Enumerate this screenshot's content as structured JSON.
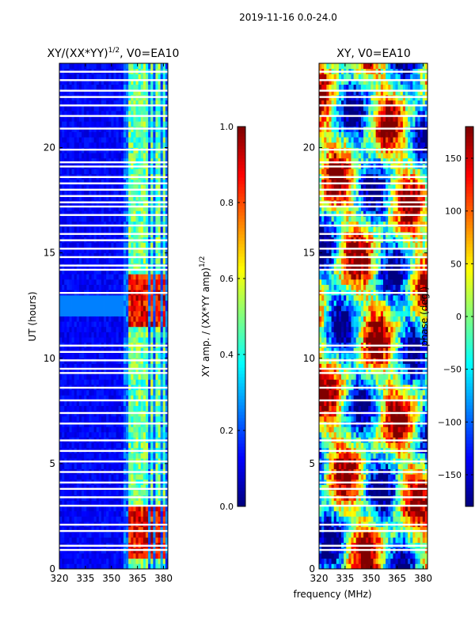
{
  "suptitle": "2019-11-16 0.0-24.0",
  "xlabel_shared": "frequency (MHz)",
  "chart_data": [
    {
      "type": "heatmap",
      "id": "amp",
      "title": "XY/(XX*YY)",
      "title_exp": "1/2",
      "title_tail": ", V0=EA10",
      "ylabel": "UT (hours)",
      "xlim": [
        320,
        382.5
      ],
      "ylim": [
        0,
        24
      ],
      "xticks": [
        320,
        335,
        350,
        365,
        380
      ],
      "yticks": [
        0,
        5,
        10,
        15,
        20
      ],
      "colorbar": {
        "label_main": "XY amp. / (XX*YY amp)",
        "label_exp": "1/2",
        "range": [
          0.0,
          1.0
        ],
        "ticks": [
          "0.0",
          "0.2",
          "0.4",
          "0.6",
          "0.8",
          "1.0"
        ],
        "tick_values": [
          0.0,
          0.2,
          0.4,
          0.6,
          0.8,
          1.0
        ],
        "colormap": "jet"
      },
      "bright_bands_MHz": [
        [
          360,
          362
        ],
        [
          363,
          365
        ],
        [
          366,
          368
        ],
        [
          369,
          371
        ],
        [
          372,
          374
        ],
        [
          376,
          378
        ],
        [
          379,
          381
        ]
      ],
      "high_amp_hours": [
        [
          11.5,
          14.0
        ],
        [
          0.5,
          3.0
        ]
      ]
    },
    {
      "type": "heatmap",
      "id": "phase",
      "title": "XY, V0=EA10",
      "xlim": [
        320,
        382.5
      ],
      "ylim": [
        0,
        24
      ],
      "xticks": [
        320,
        335,
        350,
        365,
        380
      ],
      "yticks": [
        0,
        5,
        10,
        15,
        20
      ],
      "colorbar": {
        "label": "phase (deg.)",
        "range": [
          -180,
          180
        ],
        "ticks": [
          "−150",
          "−100",
          "−50",
          "0",
          "50",
          "100",
          "150"
        ],
        "tick_values": [
          -150,
          -100,
          -50,
          0,
          50,
          100,
          150
        ],
        "colormap": "jet"
      }
    }
  ],
  "blank_rows_hours": [
    0.9,
    1.1,
    1.8,
    2.1,
    3.0,
    3.4,
    3.8,
    4.1,
    4.6,
    5.1,
    5.6,
    6.1,
    6.9,
    7.4,
    8.0,
    8.6,
    9.3,
    9.5,
    9.9,
    10.3,
    10.6,
    13.1,
    14.2,
    14.4,
    14.8,
    15.2,
    15.6,
    15.9,
    16.3,
    16.8,
    17.2,
    17.4,
    17.7,
    18.0,
    18.3,
    18.6,
    19.1,
    19.3,
    19.9,
    20.9,
    21.5,
    22.0,
    22.4,
    22.7,
    23.2,
    23.6
  ]
}
